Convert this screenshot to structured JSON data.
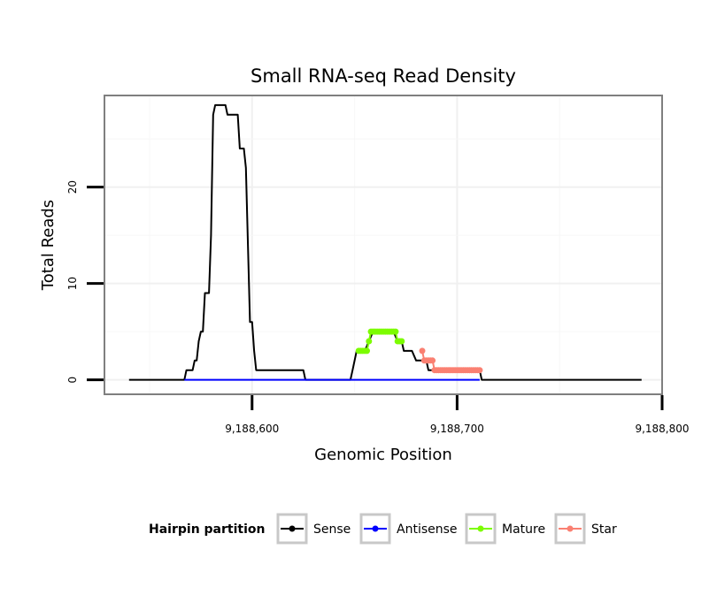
{
  "chart_data": {
    "type": "line",
    "title": "Small RNA-seq Read Density",
    "xlabel": "Genomic Position",
    "ylabel": "Total Reads",
    "xlim": [
      9188528,
      9188800
    ],
    "ylim": [
      -1.5,
      29.5
    ],
    "x_ticks": [
      9188600,
      9188700,
      9188800
    ],
    "x_tick_labels": [
      "9,188,600",
      "9,188,700",
      "9,188,800"
    ],
    "y_ticks": [
      0,
      10,
      20
    ],
    "y_tick_labels": [
      "0",
      "10",
      "20"
    ],
    "legend": {
      "title": "Hairpin partition",
      "position": "bottom",
      "entries": [
        {
          "name": "Sense",
          "color": "#000000"
        },
        {
          "name": "Antisense",
          "color": "#0000ff"
        },
        {
          "name": "Mature",
          "color": "#7cfc00"
        },
        {
          "name": "Star",
          "color": "#fa8072"
        }
      ]
    },
    "series": [
      {
        "name": "Sense",
        "color": "#000000",
        "x": [
          9188540,
          9188567,
          9188568,
          9188571,
          9188572,
          9188573,
          9188574,
          9188575,
          9188576,
          9188577,
          9188578,
          9188579,
          9188580,
          9188581,
          9188582,
          9188584,
          9188587,
          9188588,
          9188590,
          9188593,
          9188594,
          9188596,
          9188597,
          9188598,
          9188599,
          9188600,
          9188601,
          9188602,
          9188603,
          9188625,
          9188626,
          9188645,
          9188648,
          9188649,
          9188650,
          9188651,
          9188652,
          9188653,
          9188654,
          9188655,
          9188657,
          9188659,
          9188661,
          9188663,
          9188665,
          9188667,
          9188669,
          9188671,
          9188673,
          9188674,
          9188675,
          9188676,
          9188677,
          9188678,
          9188680,
          9188681,
          9188682,
          9188683,
          9188684,
          9188685,
          9188686,
          9188688,
          9188690,
          9188695,
          9188700,
          9188705,
          9188708,
          9188710,
          9188711,
          9188712,
          9188790
        ],
        "y": [
          0,
          0,
          1,
          1,
          2,
          2,
          4,
          5,
          5,
          9,
          9,
          9,
          15,
          27.5,
          28.5,
          28.5,
          28.5,
          27.5,
          27.5,
          27.5,
          24,
          24,
          22,
          14,
          6,
          6,
          3,
          1,
          1,
          1,
          0,
          0,
          0,
          1,
          2,
          3,
          3,
          3,
          3,
          3,
          4,
          5,
          5,
          5,
          5,
          5,
          5,
          4,
          4,
          3,
          3,
          3,
          3,
          3,
          2,
          2,
          2,
          2,
          2,
          2,
          1,
          1,
          1,
          1,
          1,
          1,
          1,
          1,
          1,
          0,
          0
        ]
      },
      {
        "name": "Antisense",
        "color": "#0000ff",
        "x": [
          9188567,
          9188626,
          9188645,
          9188711
        ],
        "y": [
          0,
          0,
          0,
          0
        ]
      },
      {
        "name": "Mature",
        "color": "#7cfc00",
        "x": [
          9188652,
          9188653,
          9188654,
          9188655,
          9188656,
          9188657,
          9188658,
          9188659,
          9188660,
          9188661,
          9188662,
          9188663,
          9188664,
          9188665,
          9188666,
          9188667,
          9188668,
          9188669,
          9188670,
          9188671,
          9188672,
          9188673
        ],
        "y": [
          3,
          3,
          3,
          3,
          3,
          4,
          5,
          5,
          5,
          5,
          5,
          5,
          5,
          5,
          5,
          5,
          5,
          5,
          5,
          4,
          4,
          4
        ]
      },
      {
        "name": "Star",
        "color": "#fa8072",
        "x": [
          9188683,
          9188684,
          9188685,
          9188686,
          9188687,
          9188688,
          9188689,
          9188690,
          9188691,
          9188692,
          9188693,
          9188694,
          9188695,
          9188696,
          9188697,
          9188698,
          9188699,
          9188700,
          9188701,
          9188702,
          9188703,
          9188704,
          9188705,
          9188706,
          9188707,
          9188708,
          9188709,
          9188710,
          9188711
        ],
        "y": [
          3,
          2,
          2,
          2,
          2,
          2,
          1,
          1,
          1,
          1,
          1,
          1,
          1,
          1,
          1,
          1,
          1,
          1,
          1,
          1,
          1,
          1,
          1,
          1,
          1,
          1,
          1,
          1,
          1
        ]
      }
    ]
  }
}
